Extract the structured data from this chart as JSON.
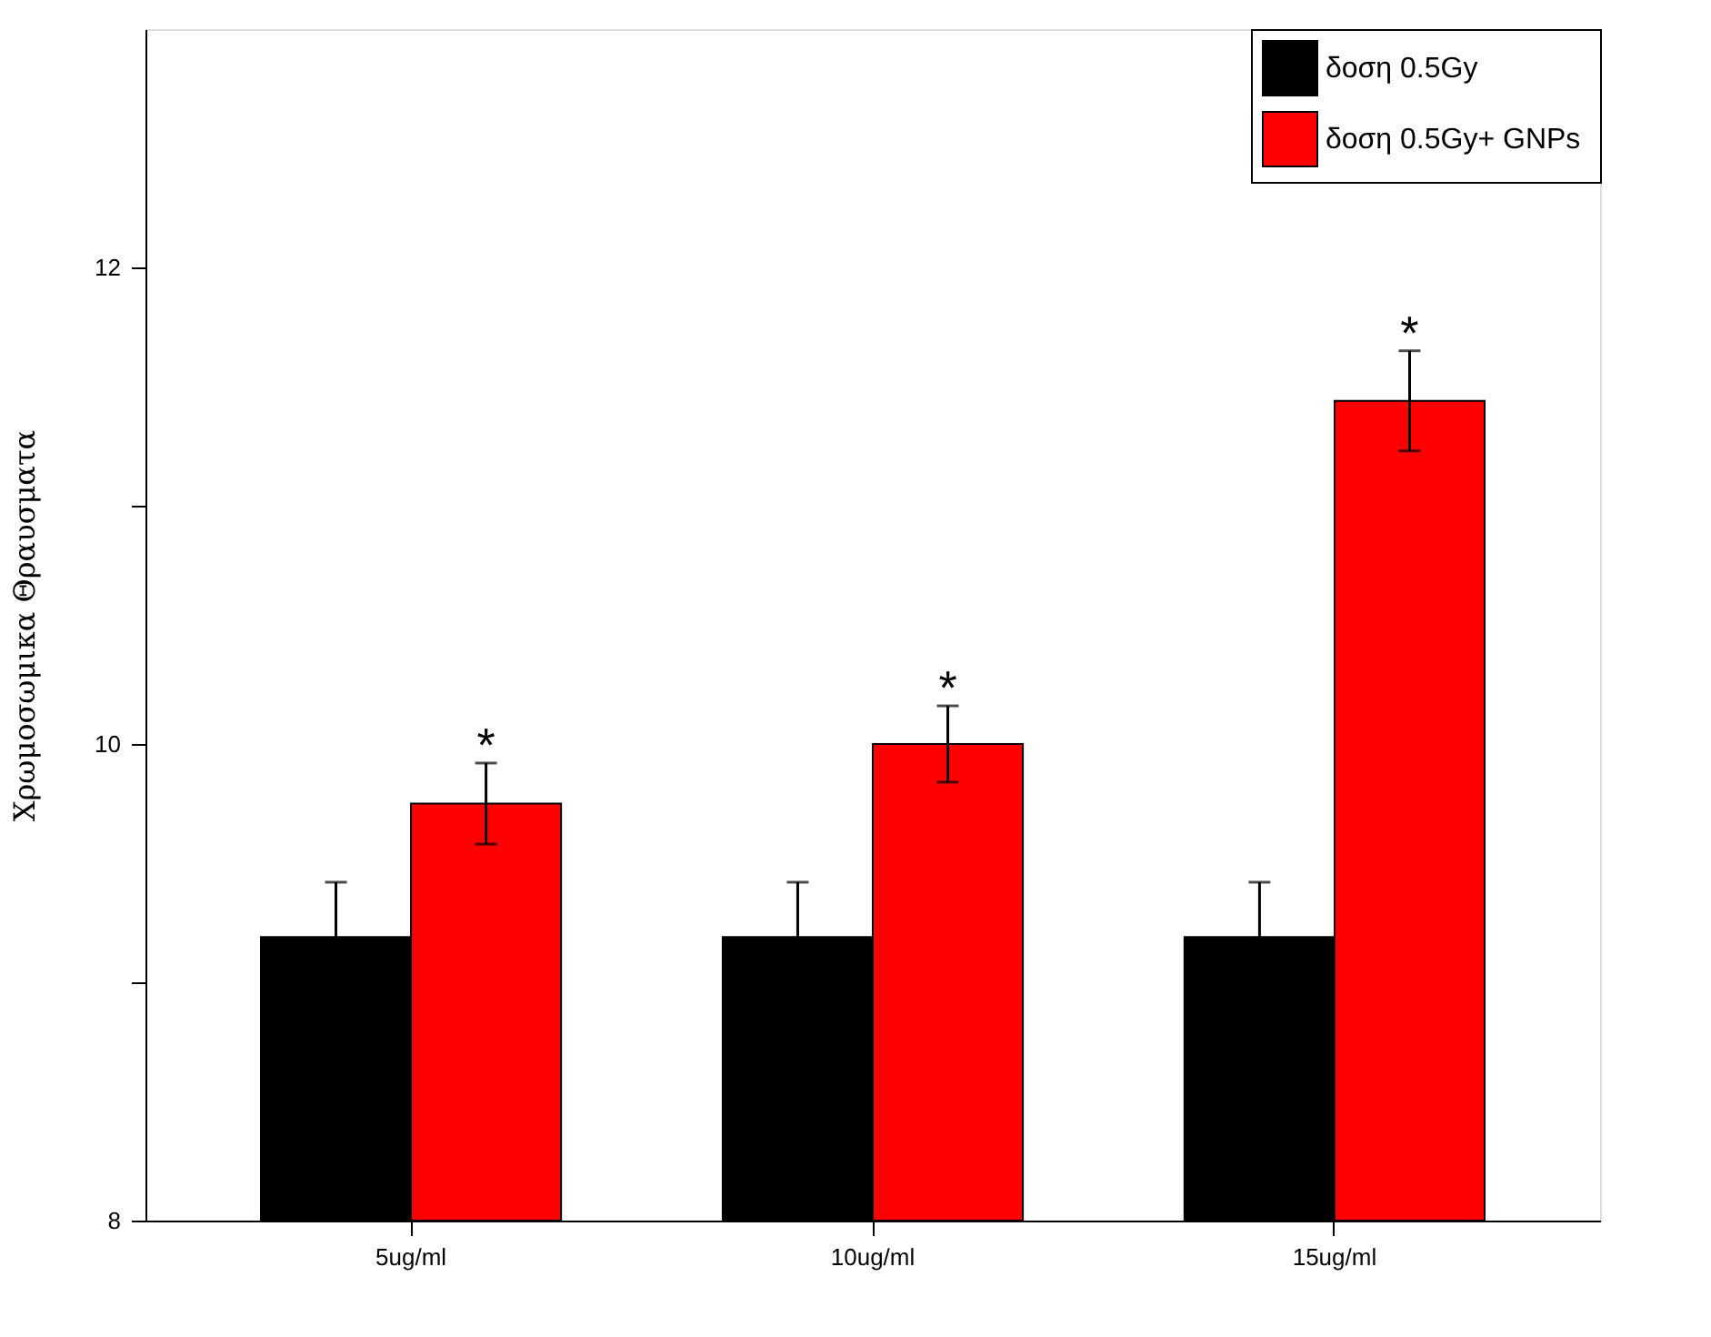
{
  "chart_data": {
    "type": "bar",
    "ylabel": "Χρωμοσωμικα Θραυσματα",
    "categories": [
      "5ug/ml",
      "10ug/ml",
      "15ug/ml"
    ],
    "series": [
      {
        "name": "δοση 0.5Gy",
        "color": "#000000",
        "values": [
          9.19,
          9.19,
          9.19
        ],
        "errors": [
          0.23,
          0.23,
          0.23
        ]
      },
      {
        "name": "δοση  0.5Gy+ GNPs",
        "color": "#ff0000",
        "values": [
          9.75,
          10.0,
          11.44
        ],
        "errors": [
          0.17,
          0.16,
          0.21
        ]
      }
    ],
    "ylim": [
      8,
      13
    ],
    "yticks": [
      8,
      {
        "value": 9,
        "label": null
      },
      10,
      {
        "value": 11,
        "label": null
      },
      12
    ],
    "annotations": [
      "*",
      "*",
      "*"
    ],
    "legend": "top right",
    "grid": false
  }
}
